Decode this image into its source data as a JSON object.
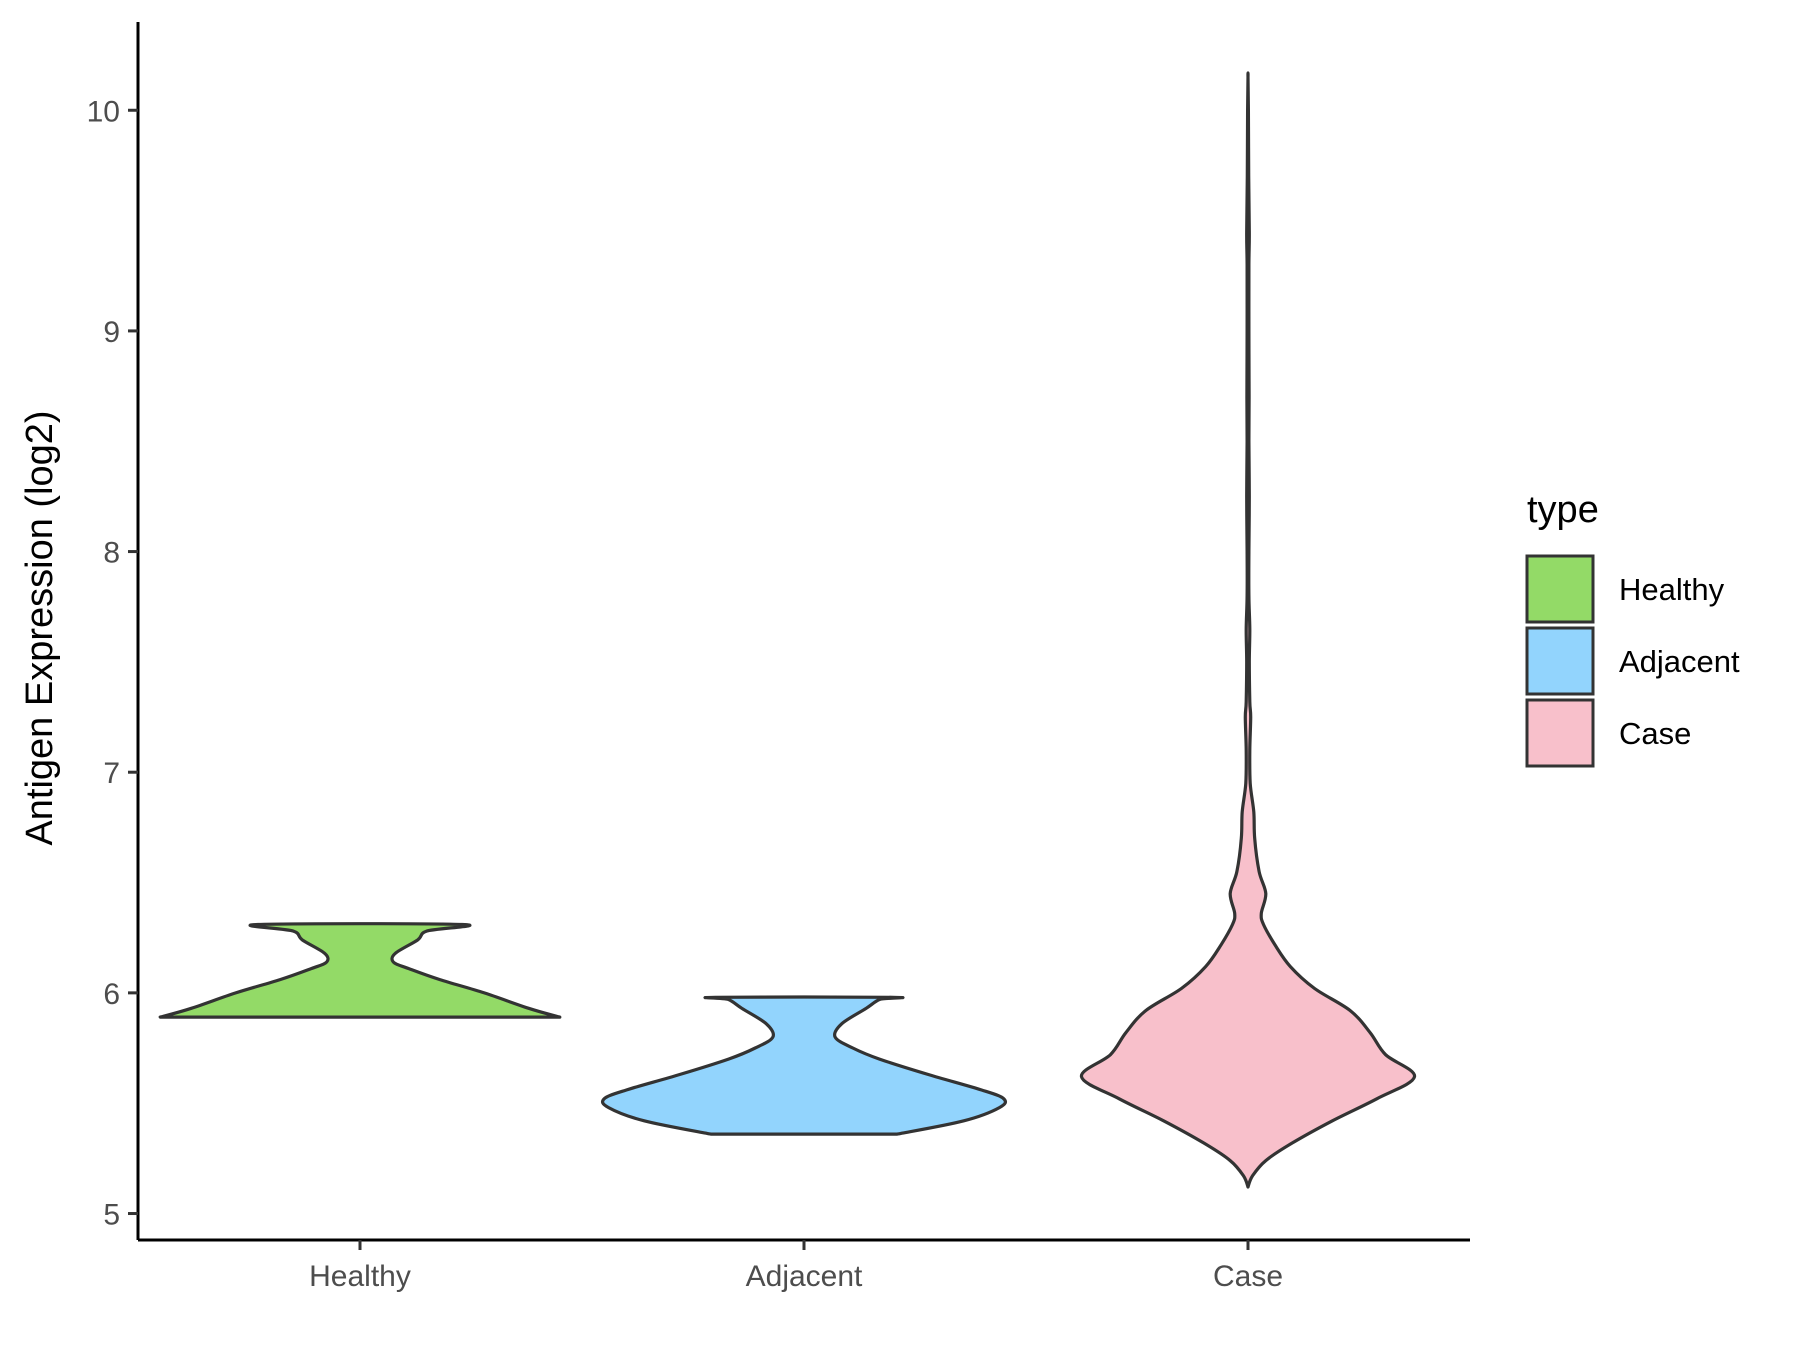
{
  "chart_data": {
    "type": "violin",
    "title": "",
    "xlabel": "",
    "ylabel": "Antigen Expression (log2)",
    "categories": [
      "Healthy",
      "Adjacent",
      "Case"
    ],
    "ylim": [
      4.88,
      10.4
    ],
    "yticks": [
      5,
      6,
      7,
      8,
      9,
      10
    ],
    "grid": false,
    "legend": {
      "title": "type",
      "position": "right",
      "entries": [
        "Healthy",
        "Adjacent",
        "Case"
      ]
    },
    "colors": {
      "Healthy": "#93da67",
      "Adjacent": "#92d4fd",
      "Case": "#f8c0cb",
      "outline": "#333333"
    },
    "series": [
      {
        "category": "Healthy",
        "range": [
          5.89,
          6.31
        ],
        "density": [
          [
            5.89,
            0.9
          ],
          [
            5.93,
            0.76
          ],
          [
            6.0,
            0.56
          ],
          [
            6.06,
            0.36
          ],
          [
            6.11,
            0.22
          ],
          [
            6.14,
            0.15
          ],
          [
            6.18,
            0.16
          ],
          [
            6.24,
            0.26
          ],
          [
            6.28,
            0.3
          ],
          [
            6.31,
            0.46
          ]
        ]
      },
      {
        "category": "Adjacent",
        "range": [
          5.36,
          5.98
        ],
        "density": [
          [
            5.36,
            0.42
          ],
          [
            5.42,
            0.72
          ],
          [
            5.48,
            0.88
          ],
          [
            5.52,
            0.9
          ],
          [
            5.56,
            0.8
          ],
          [
            5.63,
            0.56
          ],
          [
            5.7,
            0.34
          ],
          [
            5.75,
            0.22
          ],
          [
            5.8,
            0.14
          ],
          [
            5.86,
            0.17
          ],
          [
            5.93,
            0.28
          ],
          [
            5.97,
            0.34
          ],
          [
            5.98,
            0.4
          ]
        ]
      },
      {
        "category": "Case",
        "range": [
          5.12,
          10.15
        ],
        "density": [
          [
            5.12,
            0.0
          ],
          [
            5.17,
            0.02
          ],
          [
            5.24,
            0.08
          ],
          [
            5.32,
            0.2
          ],
          [
            5.42,
            0.38
          ],
          [
            5.52,
            0.58
          ],
          [
            5.62,
            0.75
          ],
          [
            5.72,
            0.62
          ],
          [
            5.82,
            0.55
          ],
          [
            5.92,
            0.46
          ],
          [
            6.02,
            0.3
          ],
          [
            6.12,
            0.19
          ],
          [
            6.22,
            0.12
          ],
          [
            6.31,
            0.07
          ],
          [
            6.36,
            0.06
          ],
          [
            6.45,
            0.08
          ],
          [
            6.55,
            0.05
          ],
          [
            6.7,
            0.03
          ],
          [
            6.82,
            0.026
          ],
          [
            6.95,
            0.01
          ],
          [
            7.1,
            0.008
          ],
          [
            7.25,
            0.012
          ],
          [
            7.32,
            0.008
          ],
          [
            7.5,
            0.006
          ],
          [
            7.65,
            0.008
          ],
          [
            7.8,
            0.004
          ],
          [
            8.0,
            0.004
          ],
          [
            8.25,
            0.006
          ],
          [
            8.5,
            0.004
          ],
          [
            8.7,
            0.005
          ],
          [
            9.0,
            0.004
          ],
          [
            9.3,
            0.004
          ],
          [
            9.45,
            0.006
          ],
          [
            9.7,
            0.003
          ],
          [
            10.0,
            0.002
          ],
          [
            10.15,
            0.0
          ]
        ]
      }
    ]
  }
}
